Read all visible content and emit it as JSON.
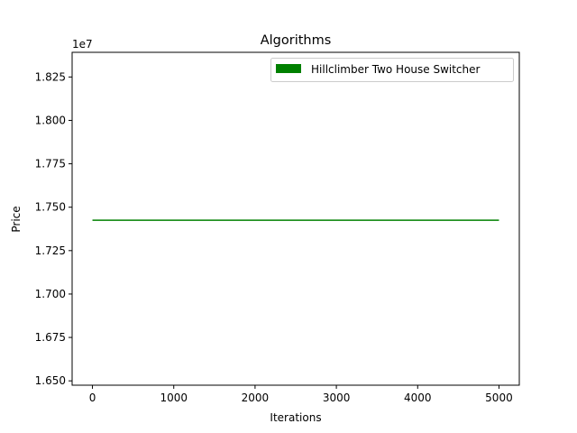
{
  "chart_data": {
    "type": "line",
    "title": "Algorithms",
    "xlabel": "Iterations",
    "ylabel": "Price",
    "y_offset_label": "1e7",
    "xlim": [
      -250,
      5250
    ],
    "ylim": [
      1.6475,
      1.8392
    ],
    "x_ticks": [
      0,
      1000,
      2000,
      3000,
      4000,
      5000
    ],
    "x_tick_labels": [
      "0",
      "1000",
      "2000",
      "3000",
      "4000",
      "5000"
    ],
    "y_ticks": [
      1.65,
      1.675,
      1.7,
      1.725,
      1.75,
      1.775,
      1.8,
      1.825
    ],
    "y_tick_labels": [
      "1.650",
      "1.675",
      "1.700",
      "1.725",
      "1.750",
      "1.775",
      "1.800",
      "1.825"
    ],
    "grid": false,
    "legend_position": "top-right",
    "series": [
      {
        "name": "Hillclimber Two House Switcher",
        "color": "#008000",
        "x": [
          0,
          5000
        ],
        "y": [
          1.7425,
          1.7425
        ]
      }
    ]
  }
}
